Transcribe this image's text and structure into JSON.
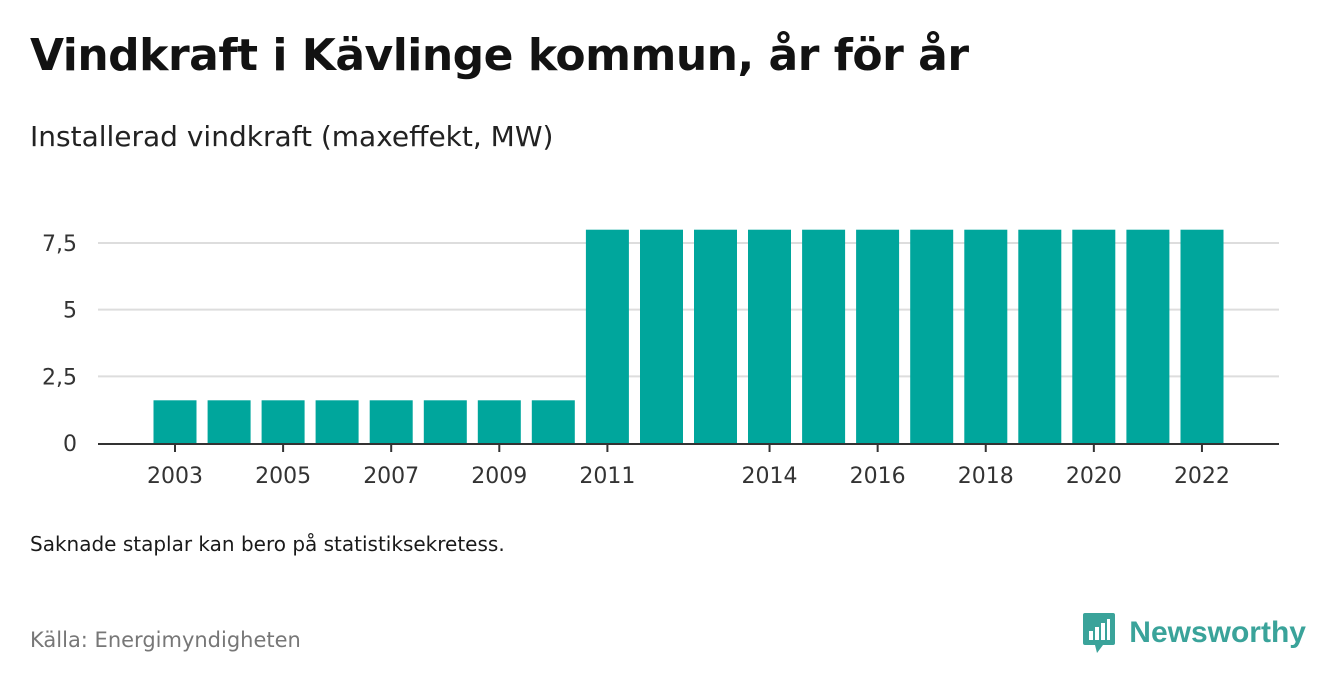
{
  "title": "Vindkraft i Kävlinge kommun, år för år",
  "subtitle": "Installerad vindkraft (maxeffekt, MW)",
  "note": "Saknade staplar kan bero på statistiksekretess.",
  "source": "Källa: Energimyndigheten",
  "brand": {
    "name": "Newsworthy",
    "icon": "newsworthy-logo-icon",
    "color": "#3aa39a"
  },
  "chart_data": {
    "type": "bar",
    "categories": [
      "2003",
      "2004",
      "2005",
      "2006",
      "2007",
      "2008",
      "2009",
      "2010",
      "2011",
      "2012",
      "2013",
      "2014",
      "2015",
      "2016",
      "2017",
      "2018",
      "2019",
      "2020",
      "2021",
      "2022"
    ],
    "values": [
      1.6,
      1.6,
      1.6,
      1.6,
      1.6,
      1.6,
      1.6,
      1.6,
      8,
      8,
      8,
      8,
      8,
      8,
      8,
      8,
      8,
      8,
      8,
      8
    ],
    "x_tick_labels": [
      "2003",
      "2005",
      "2007",
      "2009",
      "2011",
      "2014",
      "2016",
      "2018",
      "2020",
      "2022"
    ],
    "y_ticks": [
      0,
      2.5,
      5,
      7.5
    ],
    "y_tick_labels": [
      "0",
      "2,5",
      "5",
      "7,5"
    ],
    "ylim": [
      0,
      8
    ],
    "grid": true,
    "bar_color": "#00a69c",
    "xlabel": "",
    "ylabel": ""
  }
}
